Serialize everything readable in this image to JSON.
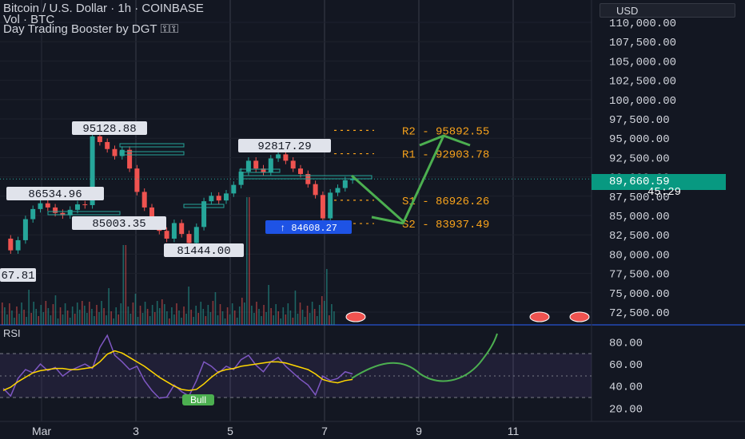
{
  "header": {
    "title": "Bitcoin / U.S. Dollar · 1h · COINBASE",
    "volume_label": "Vol · BTC",
    "indicator_label": "Day Trading Booster by DGT",
    "indicator_icons": "⚿⚿"
  },
  "currency": "USD",
  "price_axis": {
    "ticks": [
      "110,000.00",
      "107,500.00",
      "105,000.00",
      "102,500.00",
      "100,000.00",
      "97,500.00",
      "95,000.00",
      "92,500.00",
      "90,000.00",
      "87,500.00",
      "85,000.00",
      "82,500.00",
      "80,000.00",
      "77,500.00",
      "75,000.00",
      "72,500.00"
    ],
    "current_price": "89,660.59",
    "countdown": "45:29"
  },
  "time_axis": {
    "ticks": [
      "Mar",
      "3",
      "5",
      "7",
      "9",
      "11"
    ]
  },
  "pivots": {
    "r2": {
      "label": "R2 - 95892.55",
      "value": 95892.55
    },
    "r1": {
      "label": "R1 - 92903.78",
      "value": 92903.78
    },
    "s1": {
      "label": "S1 - 86926.26",
      "value": 86926.26
    },
    "s2": {
      "label": "S2 - 83937.49",
      "value": 83937.49
    }
  },
  "swing_labels": [
    {
      "text": "95128.88"
    },
    {
      "text": "86534.96"
    },
    {
      "text": "85003.35"
    },
    {
      "text": "92817.29"
    },
    {
      "text": "81444.00"
    },
    {
      "text": "67.81"
    },
    {
      "text": "↑ 84608.27"
    }
  ],
  "rsi": {
    "label": "RSI",
    "ticks": [
      "80.00",
      "60.00",
      "40.00",
      "20.00"
    ],
    "signal_label": "Bull"
  },
  "chart_data": [
    {
      "type": "candlestick",
      "title": "Bitcoin / U.S. Dollar · 1h · COINBASE",
      "ylim": [
        70000,
        111500
      ],
      "x_ticks": [
        "Mar",
        "3",
        "5",
        "7",
        "9",
        "11"
      ],
      "last_price": 89660.59,
      "pivot_levels": {
        "R2": 95892.55,
        "R1": 92903.78,
        "S1": 86926.26,
        "S2": 83937.49
      },
      "swing_points": [
        {
          "label": "95128.88",
          "value": 95128.88
        },
        {
          "label": "86534.96",
          "value": 86534.96
        },
        {
          "label": "85003.35",
          "value": 85003.35
        },
        {
          "label": "92817.29",
          "value": 92817.29
        },
        {
          "label": "81444.00",
          "value": 81444.0
        },
        {
          "label": "84608.27",
          "value": 84608.27
        }
      ],
      "price_path": [
        82000,
        80500,
        81800,
        84500,
        85800,
        86534,
        86000,
        85300,
        85003,
        85700,
        86400,
        86300,
        95128,
        94400,
        93500,
        92600,
        93400,
        91000,
        88000,
        86000,
        84200,
        83000,
        82000,
        84000,
        82600,
        81444,
        83500,
        86800,
        87500,
        86900,
        87800,
        88900,
        90600,
        92000,
        91000,
        90500,
        92300,
        92817,
        92000,
        91000,
        90300,
        89000,
        87600,
        84608,
        87900,
        88500,
        89500,
        89660
      ]
    },
    {
      "type": "line",
      "title": "RSI",
      "ylim": [
        15,
        90
      ],
      "y_ticks": [
        80,
        60,
        40,
        20
      ],
      "series": [
        {
          "values": [
            38,
            31,
            47,
            55,
            52,
            60,
            54,
            57,
            49,
            54,
            57,
            60,
            56,
            75,
            86,
            68,
            62,
            55,
            58,
            45,
            36,
            29,
            30,
            41,
            35,
            31,
            45,
            62,
            58,
            52,
            58,
            55,
            64,
            68,
            59,
            53,
            62,
            66,
            58,
            52,
            46,
            41,
            32,
            49,
            45,
            47,
            53,
            51
          ]
        },
        {
          "values": [
            36,
            39,
            44,
            48,
            52,
            54,
            55,
            56,
            56,
            55,
            55,
            56,
            57,
            62,
            69,
            72,
            70,
            66,
            62,
            58,
            53,
            48,
            44,
            40,
            37,
            36,
            37,
            42,
            48,
            53,
            55,
            56,
            58,
            59,
            60,
            61,
            62,
            62,
            61,
            59,
            57,
            55,
            51,
            46,
            44,
            43,
            45,
            46
          ]
        }
      ]
    }
  ]
}
